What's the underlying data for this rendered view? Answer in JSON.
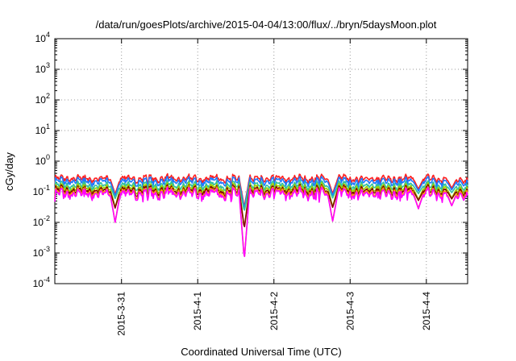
{
  "chart_data": {
    "type": "line",
    "title": "/data/run/goesPlots/archive/2015-04-04/13:00/flux/../bryn/5daysMoon.plot",
    "xlabel": "Coordinated Universal Time (UTC)",
    "ylabel": "cGy/day",
    "yscale": "log",
    "ylim": [
      0.0001,
      10000
    ],
    "y_ticks": [
      {
        "base": "10",
        "exp": "-4",
        "value": 0.0001
      },
      {
        "base": "10",
        "exp": "-3",
        "value": 0.001
      },
      {
        "base": "10",
        "exp": "-2",
        "value": 0.01
      },
      {
        "base": "10",
        "exp": "-1",
        "value": 0.1
      },
      {
        "base": "10",
        "exp": "0",
        "value": 1
      },
      {
        "base": "10",
        "exp": "1",
        "value": 10
      },
      {
        "base": "10",
        "exp": "2",
        "value": 100
      },
      {
        "base": "10",
        "exp": "3",
        "value": 1000
      },
      {
        "base": "10",
        "exp": "4",
        "value": 10000
      }
    ],
    "xlim": [
      "2015-03-30 03:00",
      "2015-04-04 13:00"
    ],
    "x_ticks": [
      "2015-3-31",
      "2015-4-1",
      "2015-4-2",
      "2015-4-3",
      "2015-4-4"
    ],
    "grid": true,
    "legend": "none",
    "series": [
      {
        "color": "#ff2020",
        "baseline": 0.27
      },
      {
        "color": "#1e78ff",
        "baseline": 0.22
      },
      {
        "color": "#30c0a0",
        "baseline": 0.16
      },
      {
        "color": "#a0d000",
        "baseline": 0.13
      },
      {
        "color": "#800000",
        "baseline": 0.11
      },
      {
        "color": "#ffa500",
        "baseline": 0.095
      },
      {
        "color": "#ff00ff",
        "baseline": 0.085
      }
    ],
    "events": [
      {
        "time": "2015-03-30 22:00",
        "min": 0.01
      },
      {
        "time": "2015-04-01 14:40",
        "min": 0.0006
      },
      {
        "time": "2015-04-02 18:30",
        "min": 0.011
      },
      {
        "time": "2015-04-03 21:30",
        "min": 0.028
      },
      {
        "time": "2015-04-04 08:00",
        "min": 0.035
      }
    ]
  }
}
